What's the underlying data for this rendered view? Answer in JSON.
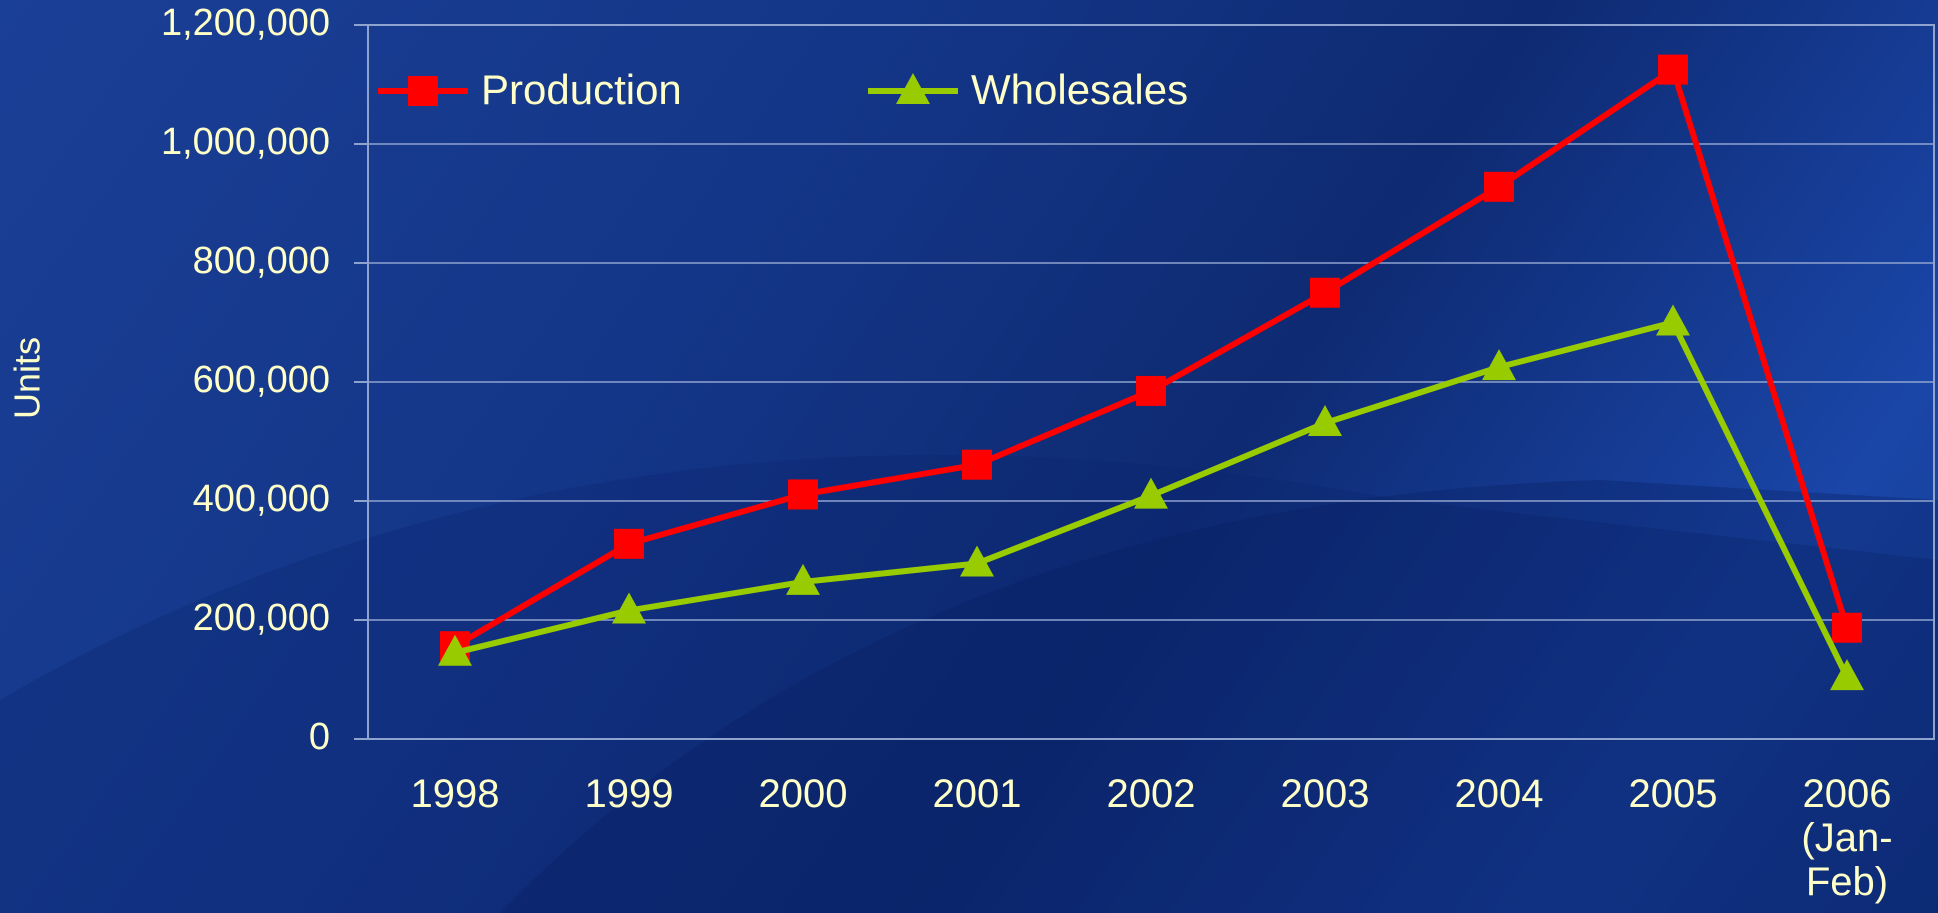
{
  "chart_data": {
    "type": "line",
    "y_label": "Units",
    "categories": [
      "1998",
      "1999",
      "2000",
      "2001",
      "2002",
      "2003",
      "2004",
      "2005",
      "2006 (Jan-Feb)"
    ],
    "series": [
      {
        "name": "Production",
        "color": "#ff0000",
        "marker": "square",
        "values": [
          156000,
          328000,
          411000,
          461000,
          585000,
          750000,
          928000,
          1125000,
          187000
        ]
      },
      {
        "name": "Wholesales",
        "color": "#99cc00",
        "marker": "triangle",
        "values": [
          145000,
          216000,
          264000,
          295000,
          409000,
          531000,
          625000,
          700000,
          104000
        ]
      }
    ],
    "ylim": [
      0,
      1200000
    ],
    "yticks": [
      0,
      {
        "value": 200000,
        "label": "200,000"
      },
      {
        "value": 400000,
        "label": "400,000"
      },
      {
        "value": 600000,
        "label": "600,000"
      },
      {
        "value": 800000,
        "label": "800,000"
      },
      {
        "value": 1000000,
        "label": "1,000,000"
      },
      {
        "value": 1200000,
        "label": "1,200,000"
      }
    ],
    "grid": true,
    "legend": "top-left"
  }
}
